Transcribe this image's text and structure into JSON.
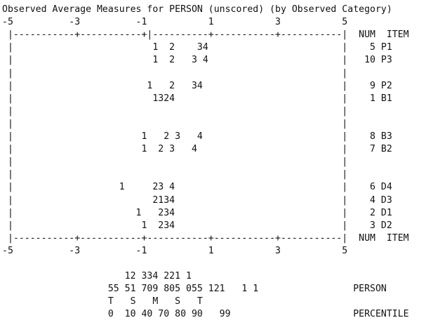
{
  "title": "Observed Average Measures for PERSON (unscored) (by Observed Category)",
  "scale_top": "-5          -3          -1           1           3           5",
  "border_top": " |-----------+-----------+|----------+-----------+-----------|  NUM  ITEM",
  "rows": [
    " |                         1  2    34                        |    5 P1",
    " |                         1  2   3 4                        |   10 P3",
    " |                                                           |",
    " |                        1   2   34                         |    9 P2",
    " |                         1324                              |    1 B1",
    " |                                                           |",
    " |                                                           |",
    " |                       1   2 3   4                         |    8 B3",
    " |                       1  2 3   4                          |    7 B2",
    " |                                                           |",
    " |                                                           |",
    " |                   1     23 4                              |    6 D4",
    " |                         2134                              |    4 D3",
    " |                      1   234                              |    2 D1",
    " |                       1  234                              |    3 D2"
  ],
  "border_bottom": " |-----------+-----------+-----------+-----------+-----------|  NUM  ITEM",
  "scale_bottom": "-5          -3          -1           1           3           5",
  "distribution": [
    "                      12 334 221 1",
    "                   55 51 709 805 055 121   1 1                 PERSON",
    "                   T   S   M   S   T",
    "                   0  10 40 70 80 90   99                      PERCENTILE"
  ]
}
